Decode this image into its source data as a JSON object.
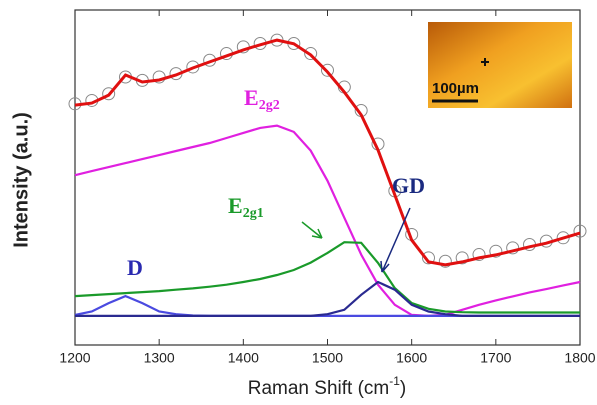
{
  "chart_data": {
    "type": "line",
    "ylabel": "Intensity (a.u.)",
    "xlabel": {
      "text": "Raman Shift (cm",
      "sup": "-1",
      "after": ")"
    },
    "x": [
      1200,
      1220,
      1240,
      1260,
      1280,
      1300,
      1320,
      1340,
      1360,
      1380,
      1400,
      1420,
      1440,
      1460,
      1480,
      1500,
      1520,
      1540,
      1560,
      1580,
      1600,
      1620,
      1640,
      1660,
      1680,
      1700,
      1720,
      1740,
      1760,
      1780,
      1800
    ],
    "xlim": [
      1200,
      1800
    ],
    "xticks": [
      1200,
      1300,
      1400,
      1500,
      1600,
      1700,
      1800
    ],
    "ylim": [
      0,
      1
    ],
    "series": [
      {
        "color": "#888888",
        "marker": "circle",
        "values": [
          0.72,
          0.73,
          0.75,
          0.8,
          0.79,
          0.8,
          0.81,
          0.83,
          0.85,
          0.87,
          0.89,
          0.9,
          0.91,
          0.9,
          0.87,
          0.82,
          0.77,
          0.7,
          0.6,
          0.46,
          0.33,
          0.26,
          0.25,
          0.26,
          0.27,
          0.28,
          0.29,
          0.3,
          0.31,
          0.32,
          0.34
        ]
      },
      {
        "color": "#e01010",
        "marker": "none",
        "values": [
          0.716,
          0.722,
          0.746,
          0.806,
          0.785,
          0.791,
          0.806,
          0.827,
          0.845,
          0.863,
          0.881,
          0.896,
          0.91,
          0.899,
          0.866,
          0.815,
          0.755,
          0.687,
          0.582,
          0.448,
          0.313,
          0.248,
          0.239,
          0.248,
          0.26,
          0.269,
          0.281,
          0.293,
          0.304,
          0.319,
          0.334
        ]
      },
      {
        "color": "#e020e0",
        "marker": "none",
        "values": [
          0.507,
          0.519,
          0.531,
          0.543,
          0.555,
          0.567,
          0.579,
          0.591,
          0.603,
          0.618,
          0.633,
          0.648,
          0.655,
          0.636,
          0.58,
          0.49,
          0.38,
          0.27,
          0.18,
          0.12,
          0.09,
          0.087,
          0.09,
          0.105,
          0.12,
          0.133,
          0.145,
          0.157,
          0.167,
          0.178,
          0.188
        ]
      },
      {
        "color": "#1a9a2a",
        "marker": "none",
        "values": [
          0.146,
          0.149,
          0.152,
          0.155,
          0.158,
          0.161,
          0.165,
          0.169,
          0.174,
          0.18,
          0.188,
          0.197,
          0.209,
          0.224,
          0.246,
          0.275,
          0.307,
          0.305,
          0.245,
          0.17,
          0.125,
          0.108,
          0.1,
          0.098,
          0.097,
          0.097,
          0.097,
          0.097,
          0.097,
          0.097,
          0.097
        ]
      },
      {
        "color": "#4a4ae0",
        "marker": "none",
        "values": [
          0.09,
          0.1,
          0.125,
          0.146,
          0.125,
          0.1,
          0.092,
          0.088,
          0.087,
          0.087,
          0.087,
          0.087,
          0.087,
          0.087,
          0.087,
          0.087,
          0.087,
          0.087,
          0.087,
          0.087,
          0.087,
          0.087,
          0.087,
          0.087,
          0.087,
          0.087,
          0.087,
          0.087,
          0.087,
          0.087,
          0.087
        ]
      },
      {
        "color": "#2a2a90",
        "marker": "none",
        "values": [
          0.087,
          0.087,
          0.087,
          0.087,
          0.087,
          0.087,
          0.087,
          0.087,
          0.087,
          0.087,
          0.087,
          0.087,
          0.087,
          0.087,
          0.087,
          0.092,
          0.105,
          0.15,
          0.188,
          0.165,
          0.12,
          0.1,
          0.092,
          0.087,
          0.087,
          0.087,
          0.087,
          0.087,
          0.087,
          0.087,
          0.087
        ]
      }
    ],
    "annotations": [
      {
        "text": "D",
        "sub": "",
        "color": "#2a2ab0"
      },
      {
        "text": "E",
        "sub": "2g2",
        "color": "#e020e0"
      },
      {
        "text": "E",
        "sub": "2g1",
        "color": "#1a9a2a"
      },
      {
        "text": "GD",
        "sub": "",
        "color": "#1a2a80"
      }
    ],
    "inset_scale": "100µm"
  }
}
